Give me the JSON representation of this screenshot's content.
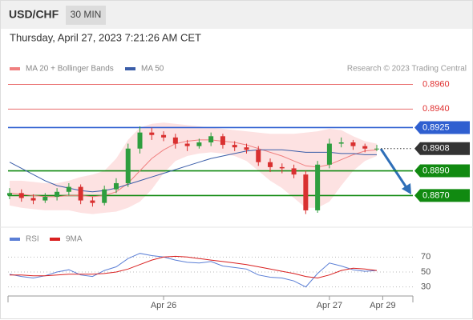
{
  "header": {
    "symbol": "USD/CHF",
    "timeframe": "30 MIN",
    "timestamp": "Thursday, April 27, 2023 7:21:26 AM CET",
    "source": "Research © 2023 Trading Central"
  },
  "chart_data": [
    {
      "type": "candlestick",
      "up_color": "#2e9e3e",
      "down_color": "#d93030",
      "open": [
        0.887,
        0.8872,
        0.8868,
        0.8866,
        0.8869,
        0.8873,
        0.8877,
        0.8866,
        0.8864,
        0.8875,
        0.888,
        0.8908,
        0.8921,
        0.8919,
        0.8917,
        0.8912,
        0.891,
        0.8913,
        0.8918,
        0.8911,
        0.8909,
        0.8907,
        0.8897,
        0.8893,
        0.8892,
        0.8887,
        0.8858,
        0.8895,
        0.8912,
        0.8913,
        0.891,
        0.8908
      ],
      "high": [
        0.8876,
        0.8875,
        0.8871,
        0.8872,
        0.8876,
        0.888,
        0.8879,
        0.8869,
        0.8878,
        0.8884,
        0.8912,
        0.8926,
        0.8925,
        0.8922,
        0.892,
        0.8915,
        0.8916,
        0.8921,
        0.892,
        0.8914,
        0.8912,
        0.891,
        0.89,
        0.8896,
        0.8895,
        0.889,
        0.8898,
        0.8916,
        0.8917,
        0.8915,
        0.8912,
        0.8911
      ],
      "low": [
        0.8867,
        0.8865,
        0.8863,
        0.8864,
        0.8866,
        0.887,
        0.8863,
        0.8861,
        0.8862,
        0.8872,
        0.8877,
        0.8904,
        0.8915,
        0.8914,
        0.8908,
        0.8906,
        0.8908,
        0.891,
        0.8908,
        0.8906,
        0.8904,
        0.8894,
        0.8889,
        0.8888,
        0.8884,
        0.8855,
        0.8856,
        0.8892,
        0.8909,
        0.8907,
        0.8905,
        0.8906
      ],
      "close": [
        0.8872,
        0.8868,
        0.8866,
        0.8869,
        0.8873,
        0.8877,
        0.8866,
        0.8864,
        0.8875,
        0.888,
        0.8908,
        0.8921,
        0.8919,
        0.8917,
        0.8912,
        0.891,
        0.8913,
        0.8918,
        0.8911,
        0.8909,
        0.8907,
        0.8897,
        0.8893,
        0.8892,
        0.8887,
        0.8858,
        0.8895,
        0.8912,
        0.8913,
        0.891,
        0.8908,
        0.8908
      ],
      "band": {
        "color": "#fde2e2",
        "upper": [
          0.8882,
          0.8882,
          0.8881,
          0.888,
          0.888,
          0.8882,
          0.8885,
          0.8887,
          0.889,
          0.89,
          0.8915,
          0.8925,
          0.8928,
          0.8929,
          0.8928,
          0.8927,
          0.8926,
          0.8925,
          0.8924,
          0.8923,
          0.8922,
          0.8921,
          0.892,
          0.892,
          0.892,
          0.8921,
          0.8922,
          0.8924,
          0.8923,
          0.8918,
          0.8914,
          0.8912
        ],
        "lower": [
          0.8862,
          0.886,
          0.8859,
          0.8858,
          0.8858,
          0.8858,
          0.8856,
          0.8855,
          0.8856,
          0.8857,
          0.886,
          0.8865,
          0.8875,
          0.8888,
          0.8898,
          0.8902,
          0.8904,
          0.8905,
          0.8904,
          0.8902,
          0.8898,
          0.889,
          0.8882,
          0.8876,
          0.8868,
          0.886,
          0.886,
          0.8865,
          0.8878,
          0.889,
          0.8898,
          0.8902
        ]
      },
      "series": [
        {
          "name": "MA 20 + Bollinger Bands",
          "color": "#f08080",
          "values": [
            0.8872,
            0.8871,
            0.887,
            0.8869,
            0.8869,
            0.887,
            0.887,
            0.8869,
            0.887,
            0.8873,
            0.888,
            0.889,
            0.89,
            0.8907,
            0.8912,
            0.8914,
            0.8915,
            0.8915,
            0.8914,
            0.8913,
            0.8911,
            0.8908,
            0.8905,
            0.8902,
            0.8898,
            0.8894,
            0.8893,
            0.8895,
            0.8899,
            0.8903,
            0.8906,
            0.8907
          ]
        },
        {
          "name": "MA 50",
          "color": "#3a5da8",
          "values": [
            0.8897,
            0.8892,
            0.8887,
            0.8882,
            0.8878,
            0.8876,
            0.8874,
            0.8873,
            0.8874,
            0.8876,
            0.8879,
            0.8882,
            0.8885,
            0.8888,
            0.8891,
            0.8894,
            0.8897,
            0.89,
            0.8902,
            0.8904,
            0.8906,
            0.8907,
            0.8907,
            0.8907,
            0.8906,
            0.8905,
            0.8905,
            0.8905,
            0.8904,
            0.8904,
            0.8903,
            0.8903
          ]
        }
      ],
      "levels": [
        {
          "value": 0.896,
          "label": "0.8960",
          "color": "#e03030",
          "boxed": false,
          "dotted": false
        },
        {
          "value": 0.894,
          "label": "0.8940",
          "color": "#e03030",
          "boxed": false,
          "dotted": false
        },
        {
          "value": 0.8925,
          "color": "#2f5fd0",
          "label": "0.8925",
          "boxed": true,
          "dotted": false
        },
        {
          "value": 0.8908,
          "label": "0.8908",
          "color": "#333333",
          "boxed": true,
          "dotted": true
        },
        {
          "value": 0.889,
          "label": "0.8890",
          "color": "#118a11",
          "boxed": true,
          "dotted": false
        },
        {
          "value": 0.887,
          "label": "0.8870",
          "color": "#118a11",
          "boxed": true,
          "dotted": false
        }
      ],
      "ylim": [
        0.8845,
        0.897
      ]
    },
    {
      "type": "line",
      "series": [
        {
          "name": "RSI",
          "color": "#5b7fd6",
          "values": [
            47,
            44,
            42,
            45,
            50,
            53,
            46,
            44,
            52,
            57,
            68,
            75,
            72,
            70,
            66,
            63,
            62,
            64,
            58,
            56,
            54,
            46,
            43,
            42,
            38,
            30,
            48,
            62,
            58,
            53,
            51,
            52
          ]
        },
        {
          "name": "9MA",
          "color": "#d92020",
          "values": [
            46,
            46,
            45,
            45,
            46,
            47,
            47,
            47,
            48,
            50,
            54,
            60,
            66,
            70,
            71,
            70,
            68,
            66,
            64,
            62,
            60,
            57,
            54,
            51,
            48,
            44,
            42,
            46,
            52,
            55,
            54,
            52
          ]
        }
      ],
      "ylim": [
        20,
        80
      ],
      "yticks": [
        30,
        50,
        70
      ],
      "xticks": [
        {
          "value": 13,
          "label": "Apr 26"
        },
        {
          "value": 27,
          "label": "Apr 27"
        },
        {
          "value": 31.5,
          "label": "Apr 29"
        }
      ]
    }
  ]
}
